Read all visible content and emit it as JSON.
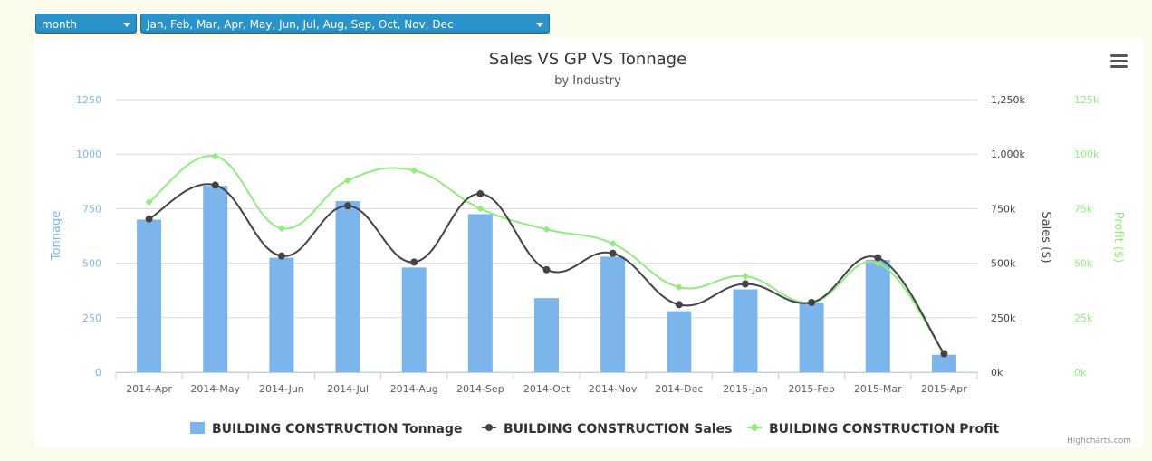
{
  "controls": {
    "period_label": "month",
    "months_label": "Jan, Feb, Mar, Apr, May, Jun, Jul, Aug, Sep, Oct, Nov, Dec"
  },
  "credit": "Highcharts.com",
  "colors": {
    "tonnage": "#7cb5ec",
    "sales": "#434348",
    "profit": "#90ed7d",
    "background": "#fcfcec",
    "select": "#2a93c9"
  },
  "chart_data": {
    "type": "bar",
    "title": "Sales VS GP VS Tonnage",
    "subtitle": "by Industry",
    "categories": [
      "2014-Apr",
      "2014-May",
      "2014-Jun",
      "2014-Jul",
      "2014-Aug",
      "2014-Sep",
      "2014-Oct",
      "2014-Nov",
      "2014-Dec",
      "2015-Jan",
      "2015-Feb",
      "2015-Mar",
      "2015-Apr"
    ],
    "series": [
      {
        "name": "BUILDING CONSTRUCTION Tonnage",
        "type": "column",
        "axis": "y1",
        "values": [
          700,
          855,
          525,
          785,
          480,
          725,
          340,
          530,
          280,
          380,
          320,
          515,
          80
        ]
      },
      {
        "name": "BUILDING CONSTRUCTION Sales",
        "type": "spline",
        "axis": "y2",
        "values": [
          703000,
          858000,
          533000,
          763000,
          505000,
          818000,
          470000,
          545000,
          310000,
          405000,
          320000,
          525000,
          85000
        ]
      },
      {
        "name": "BUILDING CONSTRUCTION Profit",
        "type": "spline",
        "axis": "y3",
        "values": [
          78000,
          99000,
          66000,
          88000,
          92500,
          75000,
          65500,
          59000,
          39000,
          44000,
          32000,
          50000,
          8500
        ]
      }
    ],
    "y1": {
      "label": "Tonnage",
      "ticks": [
        "0",
        "250",
        "500",
        "750",
        "1000",
        "1250"
      ],
      "ylim": [
        0,
        1250
      ]
    },
    "y2": {
      "label": "Sales ($)",
      "ticks": [
        "0k",
        "250k",
        "500k",
        "750k",
        "1,000k",
        "1,250k"
      ],
      "ylim": [
        0,
        1250000
      ]
    },
    "y3": {
      "label": "Profit ($)",
      "ticks": [
        "0k",
        "25k",
        "50k",
        "75k",
        "100k",
        "125k"
      ],
      "ylim": [
        0,
        125000
      ]
    },
    "grid": true,
    "legend": "bottom-center"
  }
}
